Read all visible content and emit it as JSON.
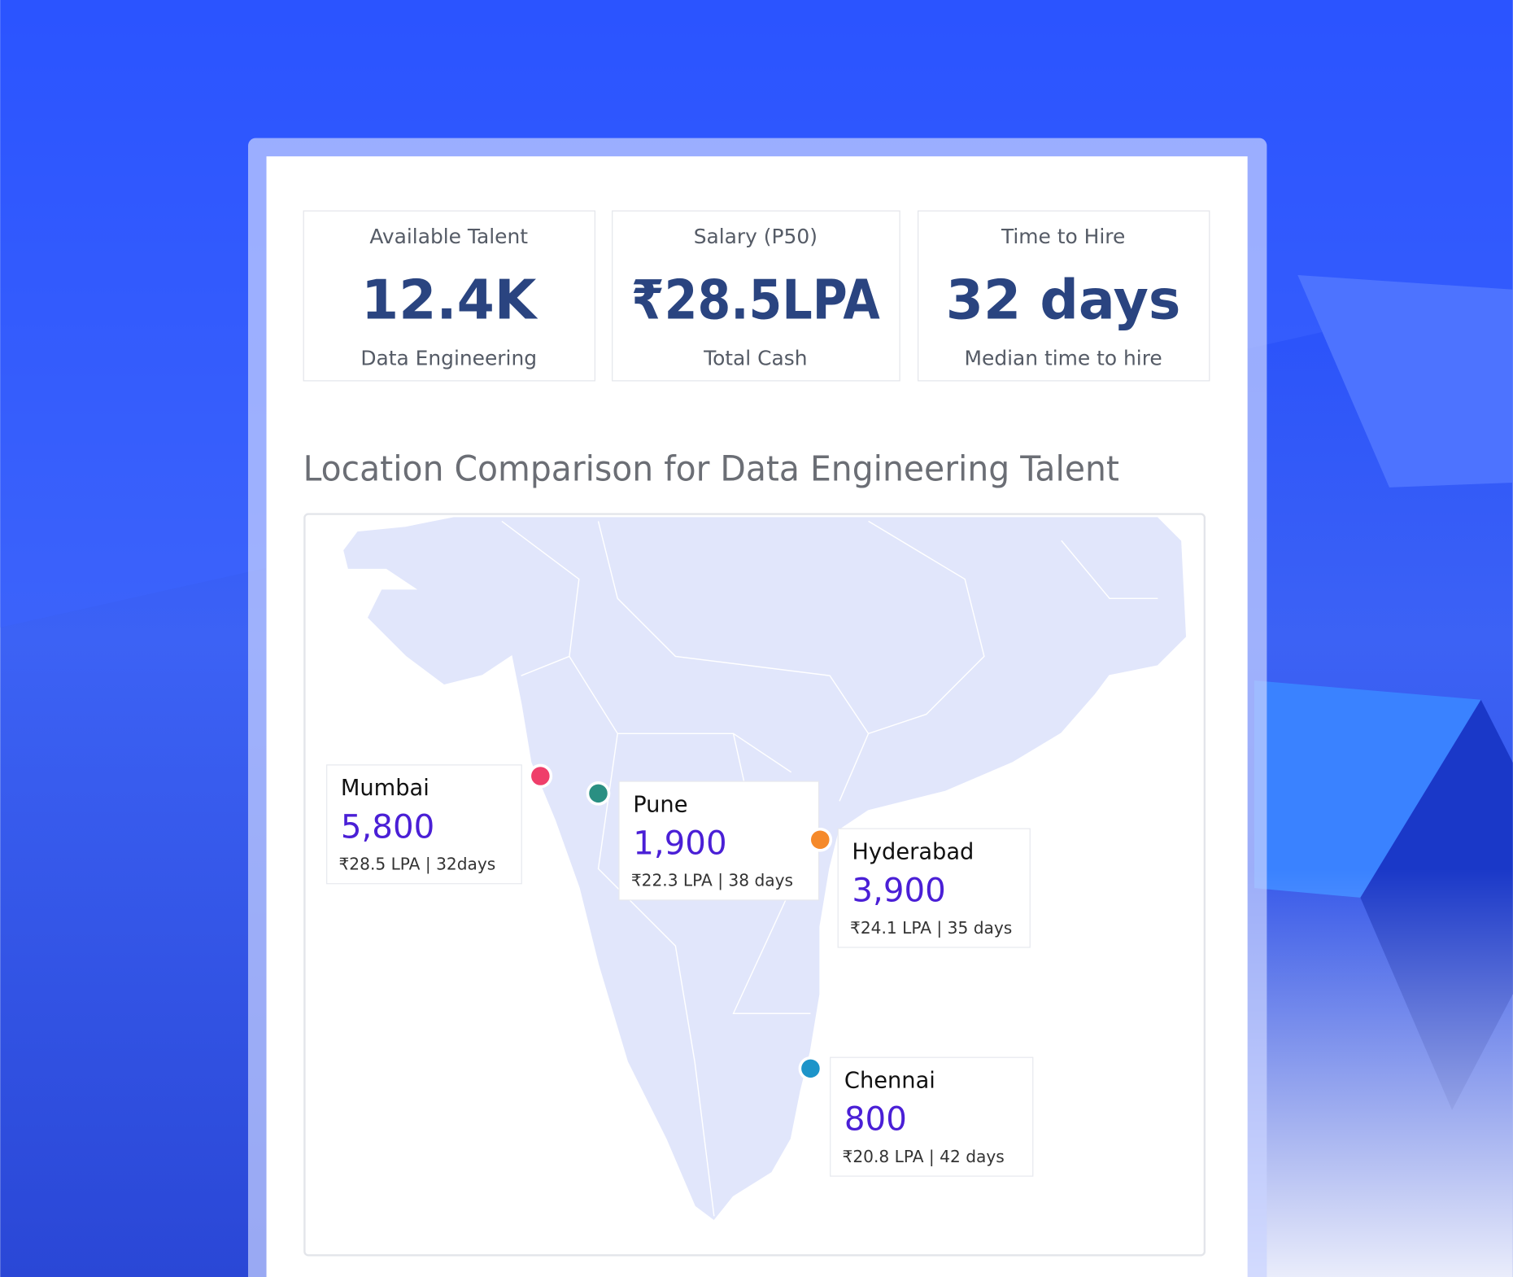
{
  "stats": [
    {
      "label": "Available Talent",
      "value": "12.4K",
      "sub": "Data Engineering"
    },
    {
      "label": "Salary (P50)",
      "value": "₹28.5LPA",
      "sub": "Total Cash"
    },
    {
      "label": "Time to Hire",
      "value": "32 days",
      "sub": "Median time to hire"
    }
  ],
  "map": {
    "title": "Location Comparison for Data Engineering Talent",
    "locations": [
      {
        "name": "Mumbai",
        "count": "5,800",
        "detail": "₹28.5 LPA | 32days",
        "color": "#ef3e6a"
      },
      {
        "name": "Pune",
        "count": "1,900",
        "detail": "₹22.3 LPA | 38 days",
        "color": "#2a8f82"
      },
      {
        "name": "Hyderabad",
        "count": "3,900",
        "detail": "₹24.1 LPA | 35 days",
        "color": "#f5892a"
      },
      {
        "name": "Chennai",
        "count": "800",
        "detail": "₹20.8 LPA | 42 days",
        "color": "#1d94c9"
      }
    ]
  }
}
